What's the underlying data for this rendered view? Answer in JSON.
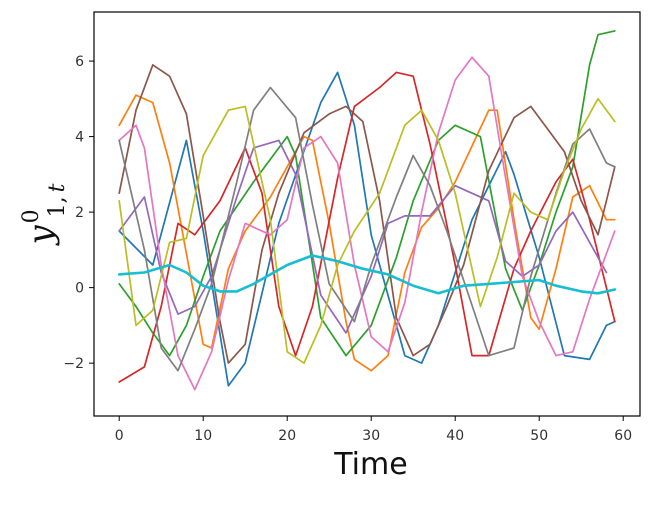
{
  "chart_data": {
    "type": "line",
    "title": "",
    "xlabel": "Time",
    "ylabel": {
      "main": "y",
      "sup": "0",
      "sub_a": "1,",
      "sub_b": "t"
    },
    "xlim": [
      -3,
      62
    ],
    "ylim": [
      -3.4,
      7.3
    ],
    "xticks": [
      0,
      10,
      20,
      30,
      40,
      50,
      60
    ],
    "yticks": [
      -2,
      0,
      2,
      4,
      6
    ],
    "grid": false,
    "legend": "none",
    "series": [
      {
        "color": "#1f77b4",
        "points": [
          [
            0,
            1.5
          ],
          [
            4,
            0.6
          ],
          [
            8,
            3.9
          ],
          [
            10,
            1.5
          ],
          [
            13,
            -2.6
          ],
          [
            15,
            -2.0
          ],
          [
            19,
            1.7
          ],
          [
            24,
            4.9
          ],
          [
            26,
            5.7
          ],
          [
            28,
            4.3
          ],
          [
            30,
            1.4
          ],
          [
            34,
            -1.8
          ],
          [
            36,
            -2.0
          ],
          [
            38,
            -1.0
          ],
          [
            42,
            1.8
          ],
          [
            46,
            3.6
          ],
          [
            47,
            3.0
          ],
          [
            50,
            0.8
          ],
          [
            53,
            -1.8
          ],
          [
            56,
            -1.9
          ],
          [
            58,
            -1.0
          ],
          [
            59,
            -0.9
          ]
        ]
      },
      {
        "color": "#ff7f0e",
        "points": [
          [
            0,
            4.3
          ],
          [
            2,
            5.1
          ],
          [
            4,
            4.9
          ],
          [
            6,
            3.3
          ],
          [
            8,
            0.9
          ],
          [
            10,
            -1.5
          ],
          [
            11,
            -1.6
          ],
          [
            13,
            0.5
          ],
          [
            15,
            1.5
          ],
          [
            18,
            2.4
          ],
          [
            22,
            4.0
          ],
          [
            23,
            3.9
          ],
          [
            25,
            1.7
          ],
          [
            27,
            -0.9
          ],
          [
            28,
            -1.9
          ],
          [
            30,
            -2.2
          ],
          [
            32,
            -1.8
          ],
          [
            34,
            0.4
          ],
          [
            36,
            1.6
          ],
          [
            38,
            2.1
          ],
          [
            40,
            2.8
          ],
          [
            44,
            4.7
          ],
          [
            45,
            4.7
          ],
          [
            47,
            1.8
          ],
          [
            49,
            -0.8
          ],
          [
            50,
            -1.1
          ],
          [
            52,
            0.5
          ],
          [
            54,
            2.4
          ],
          [
            56,
            2.7
          ],
          [
            58,
            1.8
          ],
          [
            59,
            1.8
          ]
        ]
      },
      {
        "color": "#2ca02c",
        "points": [
          [
            0,
            0.1
          ],
          [
            2,
            -0.5
          ],
          [
            4,
            -1.2
          ],
          [
            6,
            -1.8
          ],
          [
            8,
            -1.0
          ],
          [
            10,
            0.3
          ],
          [
            12,
            1.5
          ],
          [
            16,
            2.8
          ],
          [
            20,
            4.0
          ],
          [
            21,
            3.5
          ],
          [
            24,
            -0.8
          ],
          [
            27,
            -1.8
          ],
          [
            30,
            -1.0
          ],
          [
            33,
            0.8
          ],
          [
            35,
            2.3
          ],
          [
            38,
            3.9
          ],
          [
            40,
            4.3
          ],
          [
            43,
            4.0
          ],
          [
            46,
            0.5
          ],
          [
            48,
            -0.6
          ],
          [
            50,
            0.6
          ],
          [
            52,
            2.0
          ],
          [
            54,
            3.2
          ],
          [
            56,
            5.9
          ],
          [
            57,
            6.7
          ],
          [
            59,
            6.8
          ]
        ]
      },
      {
        "color": "#d62728",
        "points": [
          [
            0,
            -2.5
          ],
          [
            3,
            -2.1
          ],
          [
            5,
            -0.5
          ],
          [
            7,
            1.7
          ],
          [
            9,
            1.4
          ],
          [
            12,
            2.3
          ],
          [
            15,
            3.7
          ],
          [
            17,
            2.5
          ],
          [
            19,
            -0.5
          ],
          [
            21,
            -1.8
          ],
          [
            23,
            -0.5
          ],
          [
            26,
            2.9
          ],
          [
            28,
            4.8
          ],
          [
            31,
            5.3
          ],
          [
            33,
            5.7
          ],
          [
            35,
            5.6
          ],
          [
            37,
            3.8
          ],
          [
            40,
            0.6
          ],
          [
            42,
            -1.8
          ],
          [
            44,
            -1.8
          ],
          [
            47,
            0.5
          ],
          [
            49,
            1.5
          ],
          [
            52,
            2.8
          ],
          [
            54,
            3.4
          ],
          [
            56,
            1.8
          ],
          [
            59,
            -0.9
          ]
        ]
      },
      {
        "color": "#9467bd",
        "points": [
          [
            0,
            1.5
          ],
          [
            3,
            2.4
          ],
          [
            5,
            0.4
          ],
          [
            7,
            -0.7
          ],
          [
            9,
            -0.5
          ],
          [
            11,
            0.3
          ],
          [
            14,
            2.4
          ],
          [
            16,
            3.7
          ],
          [
            19,
            3.9
          ],
          [
            21,
            3.0
          ],
          [
            24,
            -0.2
          ],
          [
            27,
            -1.2
          ],
          [
            30,
            0.3
          ],
          [
            32,
            1.7
          ],
          [
            34,
            1.9
          ],
          [
            37,
            1.9
          ],
          [
            40,
            2.7
          ],
          [
            44,
            2.3
          ],
          [
            46,
            0.7
          ],
          [
            48,
            0.3
          ],
          [
            50,
            0.6
          ],
          [
            52,
            1.5
          ],
          [
            54,
            2.0
          ],
          [
            56,
            1.2
          ],
          [
            58,
            0.4
          ]
        ]
      },
      {
        "color": "#8c564b",
        "points": [
          [
            0,
            2.5
          ],
          [
            2,
            4.7
          ],
          [
            4,
            5.9
          ],
          [
            6,
            5.6
          ],
          [
            8,
            4.6
          ],
          [
            10,
            1.9
          ],
          [
            12,
            -0.9
          ],
          [
            13,
            -2.0
          ],
          [
            15,
            -1.5
          ],
          [
            17,
            1.0
          ],
          [
            19,
            2.5
          ],
          [
            22,
            4.1
          ],
          [
            25,
            4.6
          ],
          [
            27,
            4.8
          ],
          [
            29,
            4.4
          ],
          [
            31,
            2.3
          ],
          [
            33,
            -0.8
          ],
          [
            35,
            -1.8
          ],
          [
            37,
            -1.5
          ],
          [
            39,
            -0.5
          ],
          [
            41,
            0.6
          ],
          [
            44,
            3.1
          ],
          [
            47,
            4.5
          ],
          [
            49,
            4.8
          ],
          [
            51,
            4.2
          ],
          [
            53,
            3.6
          ],
          [
            55,
            2.3
          ],
          [
            57,
            1.4
          ],
          [
            59,
            3.2
          ]
        ]
      },
      {
        "color": "#e377c2",
        "points": [
          [
            0,
            3.9
          ],
          [
            2,
            4.3
          ],
          [
            3,
            3.7
          ],
          [
            5,
            0.6
          ],
          [
            7,
            -1.8
          ],
          [
            9,
            -2.7
          ],
          [
            11,
            -1.7
          ],
          [
            13,
            0.2
          ],
          [
            15,
            1.7
          ],
          [
            18,
            1.4
          ],
          [
            20,
            1.8
          ],
          [
            22,
            3.7
          ],
          [
            24,
            4.0
          ],
          [
            26,
            3.3
          ],
          [
            28,
            0.6
          ],
          [
            30,
            -1.3
          ],
          [
            32,
            -1.7
          ],
          [
            34,
            -0.4
          ],
          [
            36,
            2.0
          ],
          [
            38,
            4.1
          ],
          [
            40,
            5.5
          ],
          [
            42,
            6.1
          ],
          [
            44,
            5.6
          ],
          [
            46,
            2.9
          ],
          [
            48,
            0.3
          ],
          [
            50,
            -0.9
          ],
          [
            52,
            -1.8
          ],
          [
            54,
            -1.7
          ],
          [
            56,
            -0.3
          ],
          [
            59,
            1.5
          ]
        ]
      },
      {
        "color": "#7f7f7f",
        "points": [
          [
            0,
            3.9
          ],
          [
            3,
            1.0
          ],
          [
            5,
            -1.6
          ],
          [
            7,
            -2.2
          ],
          [
            9,
            -1.1
          ],
          [
            11,
            0.1
          ],
          [
            14,
            2.8
          ],
          [
            16,
            4.7
          ],
          [
            18,
            5.3
          ],
          [
            21,
            4.5
          ],
          [
            23,
            2.2
          ],
          [
            25,
            0.1
          ],
          [
            28,
            -0.9
          ],
          [
            30,
            0.6
          ],
          [
            33,
            2.4
          ],
          [
            35,
            3.5
          ],
          [
            37,
            2.7
          ],
          [
            39,
            1.5
          ],
          [
            41,
            0.2
          ],
          [
            44,
            -1.8
          ],
          [
            47,
            -1.6
          ],
          [
            49,
            0.3
          ],
          [
            52,
            2.5
          ],
          [
            54,
            3.8
          ],
          [
            56,
            4.2
          ],
          [
            58,
            3.3
          ],
          [
            59,
            3.2
          ]
        ]
      },
      {
        "color": "#bcbd22",
        "points": [
          [
            0,
            2.3
          ],
          [
            2,
            -1.0
          ],
          [
            4,
            -0.6
          ],
          [
            6,
            1.2
          ],
          [
            8,
            1.3
          ],
          [
            10,
            3.5
          ],
          [
            13,
            4.7
          ],
          [
            15,
            4.8
          ],
          [
            18,
            1.8
          ],
          [
            20,
            -1.7
          ],
          [
            22,
            -2.0
          ],
          [
            24,
            -1.0
          ],
          [
            26,
            0.6
          ],
          [
            28,
            1.5
          ],
          [
            31,
            2.5
          ],
          [
            34,
            4.3
          ],
          [
            36,
            4.7
          ],
          [
            38,
            3.9
          ],
          [
            40,
            2.5
          ],
          [
            43,
            -0.5
          ],
          [
            45,
            0.8
          ],
          [
            47,
            2.5
          ],
          [
            49,
            2.0
          ],
          [
            51,
            1.8
          ],
          [
            53,
            3.1
          ],
          [
            55,
            4.2
          ],
          [
            57,
            5.0
          ],
          [
            59,
            4.4
          ]
        ]
      },
      {
        "color": "#17becf",
        "width": 2.6,
        "points": [
          [
            0,
            0.35
          ],
          [
            3,
            0.4
          ],
          [
            6,
            0.6
          ],
          [
            8,
            0.4
          ],
          [
            10,
            0.05
          ],
          [
            12,
            -0.1
          ],
          [
            14,
            -0.1
          ],
          [
            16,
            0.1
          ],
          [
            18,
            0.35
          ],
          [
            20,
            0.6
          ],
          [
            23,
            0.85
          ],
          [
            26,
            0.7
          ],
          [
            29,
            0.5
          ],
          [
            32,
            0.35
          ],
          [
            35,
            0.05
          ],
          [
            38,
            -0.15
          ],
          [
            41,
            0.05
          ],
          [
            44,
            0.1
          ],
          [
            47,
            0.15
          ],
          [
            50,
            0.2
          ],
          [
            52,
            0.05
          ],
          [
            55,
            -0.1
          ],
          [
            57,
            -0.15
          ],
          [
            59,
            -0.05
          ]
        ]
      }
    ]
  }
}
